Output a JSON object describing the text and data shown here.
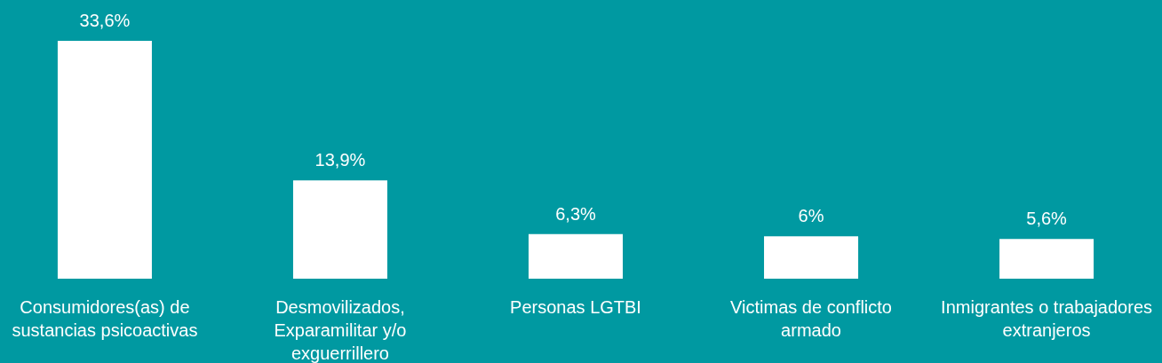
{
  "chart_data": {
    "type": "bar",
    "categories": [
      "Consumidores(as) de sustancias psicoactivas",
      "Desmovilizados, Exparamilitar y/o exguerrillero",
      "Personas LGTBI",
      "Victimas de conflicto armado",
      "Inmigrantes o trabajadores extranjeros"
    ],
    "values": [
      33.6,
      13.9,
      6.3,
      6,
      5.6
    ],
    "value_labels": [
      "33,6%",
      "13,9%",
      "6,3%",
      "6%",
      "5,6%"
    ],
    "color": "#ffffff"
  }
}
